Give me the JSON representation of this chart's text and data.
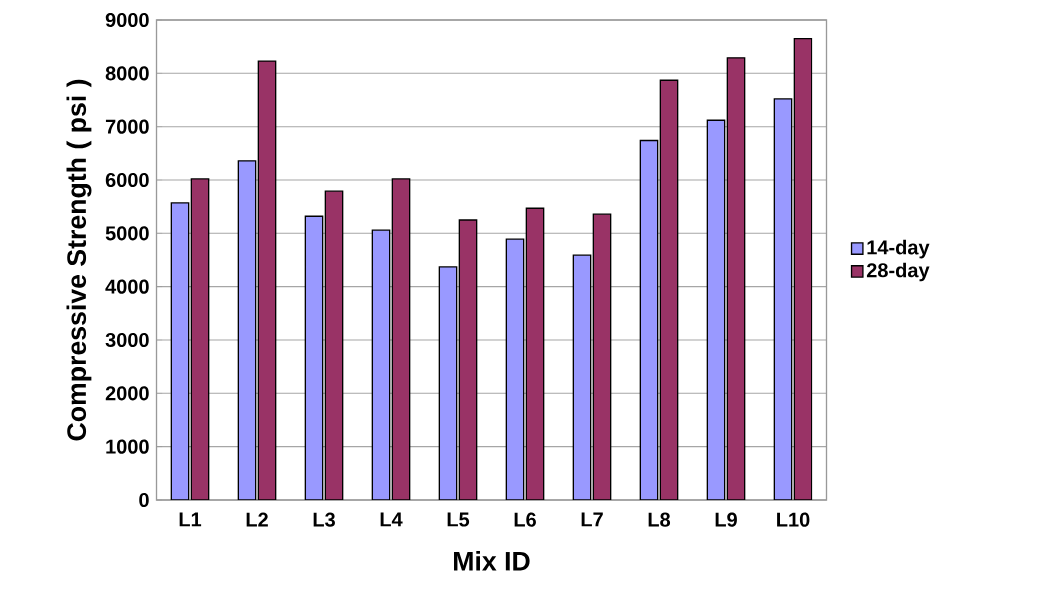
{
  "chart_data": {
    "type": "bar",
    "xlabel": "Mix ID",
    "ylabel": "Compressive Strength ( psi )",
    "categories": [
      "L1",
      "L2",
      "L3",
      "L4",
      "L5",
      "L6",
      "L7",
      "L8",
      "L9",
      "L10"
    ],
    "series": [
      {
        "name": "14-day",
        "color": "#9999ff",
        "values": [
          5570,
          6360,
          5320,
          5060,
          4370,
          4890,
          4590,
          6740,
          7120,
          7520
        ]
      },
      {
        "name": "28-day",
        "color": "#993366",
        "values": [
          6020,
          8230,
          5790,
          6020,
          5250,
          5470,
          5360,
          7870,
          8290,
          8650
        ]
      }
    ],
    "ylim": [
      0,
      9000
    ],
    "yticks": [
      0,
      1000,
      2000,
      3000,
      4000,
      5000,
      6000,
      7000,
      8000,
      9000
    ],
    "grid": "y",
    "legend": "right"
  }
}
